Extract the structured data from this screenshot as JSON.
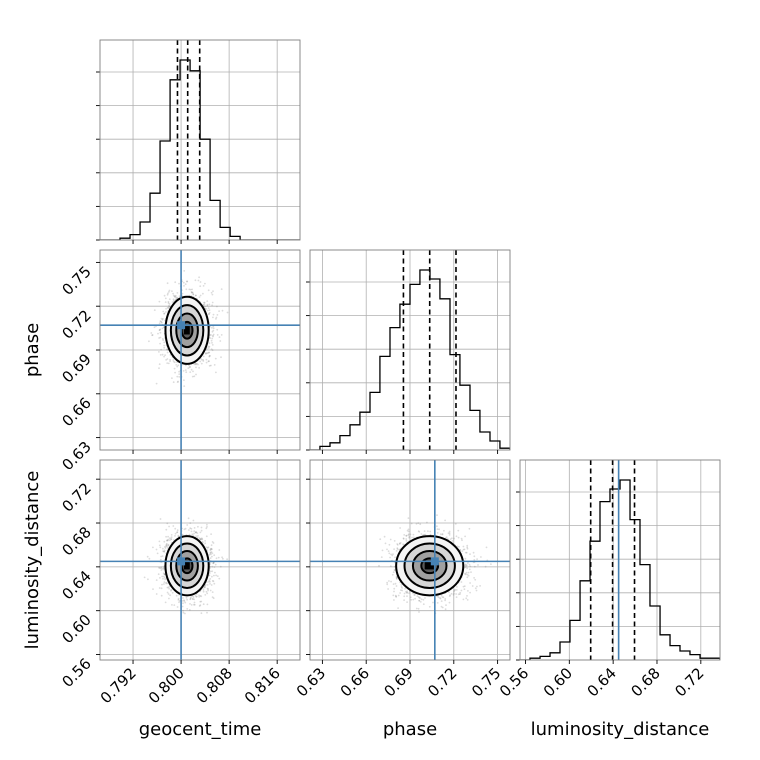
{
  "chart_data": {
    "type": "corner",
    "parameters": [
      "geocent_time",
      "phase",
      "luminosity_distance"
    ],
    "truths": {
      "geocent_time": 0.8,
      "phase": 0.707,
      "luminosity_distance": 0.645
    },
    "ranges": {
      "geocent_time": [
        0.7865,
        0.8198
      ],
      "phase": [
        0.6215,
        0.7585
      ],
      "luminosity_distance": [
        0.555,
        0.7375
      ]
    },
    "ticks": {
      "geocent_time": {
        "values": [
          0.792,
          0.8,
          0.808,
          0.816
        ],
        "labels": [
          "0.792",
          "0.800",
          "0.808",
          "0.816"
        ]
      },
      "phase": {
        "values": [
          0.63,
          0.66,
          0.69,
          0.72,
          0.75
        ],
        "labels": [
          "0.63",
          "0.66",
          "0.69",
          "0.72",
          "0.75"
        ]
      },
      "luminosity_distance": {
        "values": [
          0.56,
          0.6,
          0.64,
          0.68,
          0.72
        ],
        "labels": [
          "0.56",
          "0.60",
          "0.64",
          "0.68",
          "0.72"
        ]
      }
    },
    "histograms": {
      "geocent_time": {
        "bin_edges": [
          0.7865,
          0.78817,
          0.78983,
          0.7915,
          0.79317,
          0.79483,
          0.7965,
          0.79817,
          0.79983,
          0.8015,
          0.80317,
          0.80483,
          0.8065,
          0.80817,
          0.80983,
          0.8115,
          0.81317,
          0.81483,
          0.8165,
          0.81817,
          0.8198
        ],
        "counts": [
          0,
          0,
          1,
          3,
          10,
          26,
          55,
          89,
          100,
          94,
          56,
          22,
          7,
          2,
          0,
          0,
          0,
          0,
          0,
          0
        ],
        "quantiles": [
          0.7994,
          0.8011,
          0.8031
        ]
      },
      "phase": {
        "bin_edges": [
          0.6215,
          0.6283,
          0.6352,
          0.642,
          0.6489,
          0.6557,
          0.6626,
          0.6694,
          0.6763,
          0.6831,
          0.69,
          0.6968,
          0.7037,
          0.7105,
          0.7174,
          0.7242,
          0.7311,
          0.7379,
          0.7448,
          0.7516,
          0.7585
        ],
        "counts": [
          0,
          2,
          4,
          8,
          14,
          21,
          32,
          52,
          68,
          81,
          92,
          100,
          95,
          84,
          53,
          36,
          22,
          10,
          5,
          1
        ],
        "quantiles": [
          0.6855,
          0.7035,
          0.7215
        ]
      },
      "luminosity_distance": {
        "bin_edges": [
          0.555,
          0.5641,
          0.5733,
          0.5824,
          0.5915,
          0.6006,
          0.6098,
          0.6189,
          0.628,
          0.6371,
          0.6463,
          0.6554,
          0.6645,
          0.6736,
          0.6828,
          0.6919,
          0.701,
          0.7101,
          0.7193,
          0.7284,
          0.7375
        ],
        "counts": [
          0,
          1,
          2,
          4,
          10,
          22,
          44,
          66,
          88,
          95,
          100,
          78,
          53,
          30,
          14,
          8,
          5,
          3,
          1,
          1
        ],
        "quantiles": [
          0.6195,
          0.6395,
          0.6595
        ]
      }
    },
    "posterior_2d": {
      "geocent_time": {
        "mean": 0.801,
        "std": 0.0018
      },
      "phase": {
        "mean": 0.7035,
        "std": 0.0115
      },
      "luminosity_distance": {
        "mean": 0.641,
        "std": 0.0135
      }
    },
    "contour_levels_sigma": [
      0.5,
      1.0,
      1.5,
      2.0
    ],
    "colors": {
      "truth": "#4682b4",
      "hist": "#000000",
      "samples": "#808080",
      "frame": "#7f7f7f",
      "grid": "#b0b0b0"
    },
    "grid": true
  }
}
